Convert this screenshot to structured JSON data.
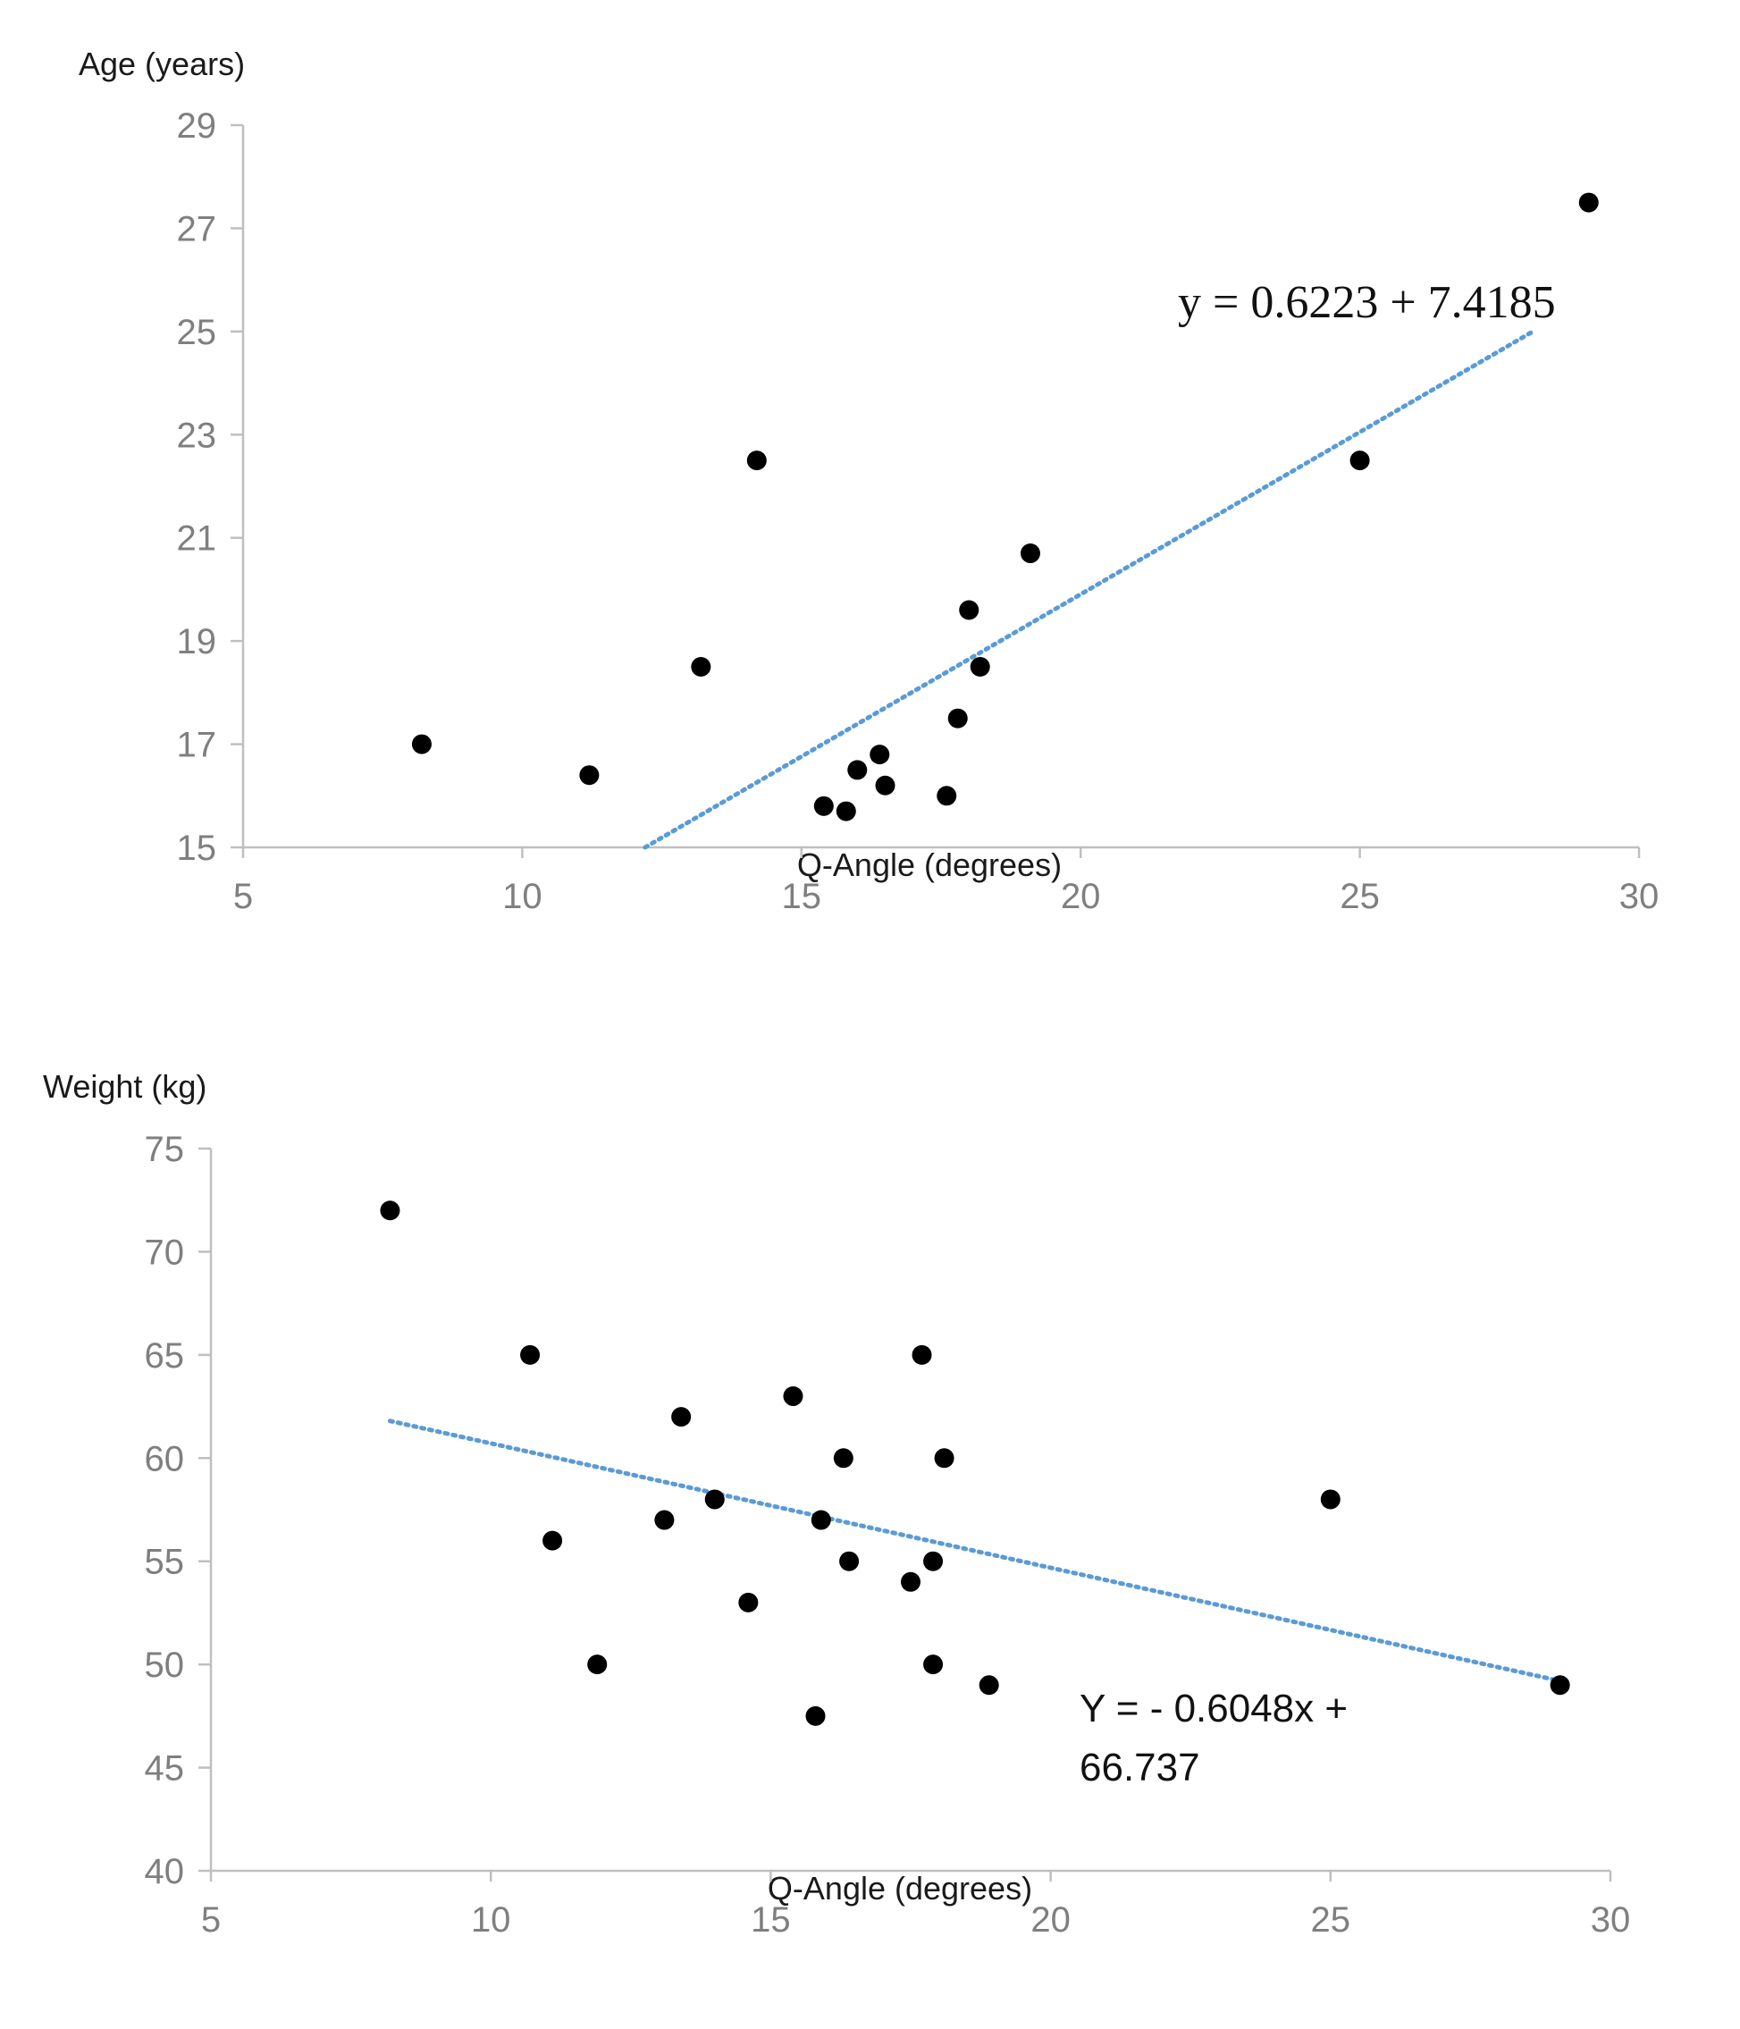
{
  "chart_data": [
    {
      "type": "scatter",
      "title": "",
      "ylabel": "Age (years)",
      "xlabel": "Q-Angle (degrees)",
      "xlim": [
        5,
        30
      ],
      "ylim": [
        15,
        29
      ],
      "xticks": [
        5,
        10,
        15,
        20,
        25,
        30
      ],
      "yticks": [
        15,
        17,
        19,
        21,
        23,
        25,
        27,
        29
      ],
      "grid": false,
      "trendline": {
        "x": [
          12.2,
          28.1
        ],
        "y": [
          15.0,
          25.0
        ],
        "style": "dotted",
        "color": "#5b9bd5"
      },
      "equation": "y = 0.6223 + 7.4185",
      "points": [
        {
          "x": 8.2,
          "y": 17.0
        },
        {
          "x": 11.2,
          "y": 16.4
        },
        {
          "x": 13.2,
          "y": 18.5
        },
        {
          "x": 14.2,
          "y": 22.5
        },
        {
          "x": 15.4,
          "y": 15.8
        },
        {
          "x": 15.8,
          "y": 15.7
        },
        {
          "x": 16.0,
          "y": 16.5
        },
        {
          "x": 16.4,
          "y": 16.8
        },
        {
          "x": 16.5,
          "y": 16.2
        },
        {
          "x": 17.6,
          "y": 16.0
        },
        {
          "x": 17.8,
          "y": 17.5
        },
        {
          "x": 18.0,
          "y": 19.6
        },
        {
          "x": 18.2,
          "y": 18.5
        },
        {
          "x": 19.1,
          "y": 20.7
        },
        {
          "x": 25.0,
          "y": 22.5
        },
        {
          "x": 29.1,
          "y": 27.5
        }
      ]
    },
    {
      "type": "scatter",
      "title": "",
      "ylabel": "Weight (kg)",
      "xlabel": "Q-Angle (degrees)",
      "xlim": [
        5,
        30
      ],
      "ylim": [
        40,
        75
      ],
      "xticks": [
        5,
        10,
        15,
        20,
        25,
        30
      ],
      "yticks": [
        40,
        45,
        50,
        55,
        60,
        65,
        70,
        75
      ],
      "grid": false,
      "trendline": {
        "x": [
          8.2,
          29.1
        ],
        "y": [
          61.8,
          49.2
        ],
        "style": "dotted",
        "color": "#5b9bd5"
      },
      "equation_lines": [
        "Y = - 0.6048x +",
        "66.737"
      ],
      "points": [
        {
          "x": 8.2,
          "y": 72
        },
        {
          "x": 10.7,
          "y": 65
        },
        {
          "x": 11.1,
          "y": 56
        },
        {
          "x": 11.9,
          "y": 50
        },
        {
          "x": 13.1,
          "y": 57
        },
        {
          "x": 13.4,
          "y": 62
        },
        {
          "x": 14.0,
          "y": 58
        },
        {
          "x": 14.6,
          "y": 53
        },
        {
          "x": 15.4,
          "y": 63
        },
        {
          "x": 15.8,
          "y": 47.5
        },
        {
          "x": 15.9,
          "y": 57
        },
        {
          "x": 16.3,
          "y": 60
        },
        {
          "x": 16.4,
          "y": 55
        },
        {
          "x": 17.5,
          "y": 54
        },
        {
          "x": 17.7,
          "y": 65
        },
        {
          "x": 17.9,
          "y": 55
        },
        {
          "x": 17.9,
          "y": 50
        },
        {
          "x": 18.1,
          "y": 60
        },
        {
          "x": 18.9,
          "y": 49
        },
        {
          "x": 25.0,
          "y": 58
        },
        {
          "x": 29.1,
          "y": 49
        }
      ]
    }
  ]
}
